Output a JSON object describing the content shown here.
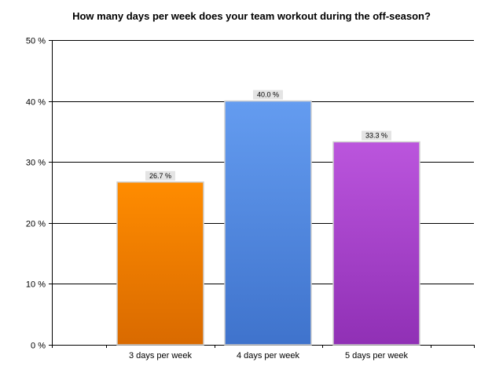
{
  "chart_data": {
    "type": "bar",
    "title": "How many days per week does your team workout during the off-season?",
    "xlabel": "",
    "ylabel": "",
    "categories": [
      "3 days per week",
      "4 days per week",
      "5 days per week"
    ],
    "values": [
      26.7,
      40.0,
      33.3
    ],
    "data_labels": [
      "26.7 %",
      "40.0 %",
      "33.3 %"
    ],
    "ylim": [
      0,
      50
    ],
    "yticks": [
      0,
      10,
      20,
      30,
      40,
      50
    ],
    "ytick_labels": [
      "0 %",
      "10 %",
      "20 %",
      "30 %",
      "40 %",
      "50 %"
    ],
    "grid": true,
    "legend": "none",
    "colors": [
      {
        "top": "#ff8c00",
        "bottom": "#d96a00"
      },
      {
        "top": "#649cf0",
        "bottom": "#3f73cc"
      },
      {
        "top": "#bb55dd",
        "bottom": "#9030b5"
      }
    ]
  }
}
